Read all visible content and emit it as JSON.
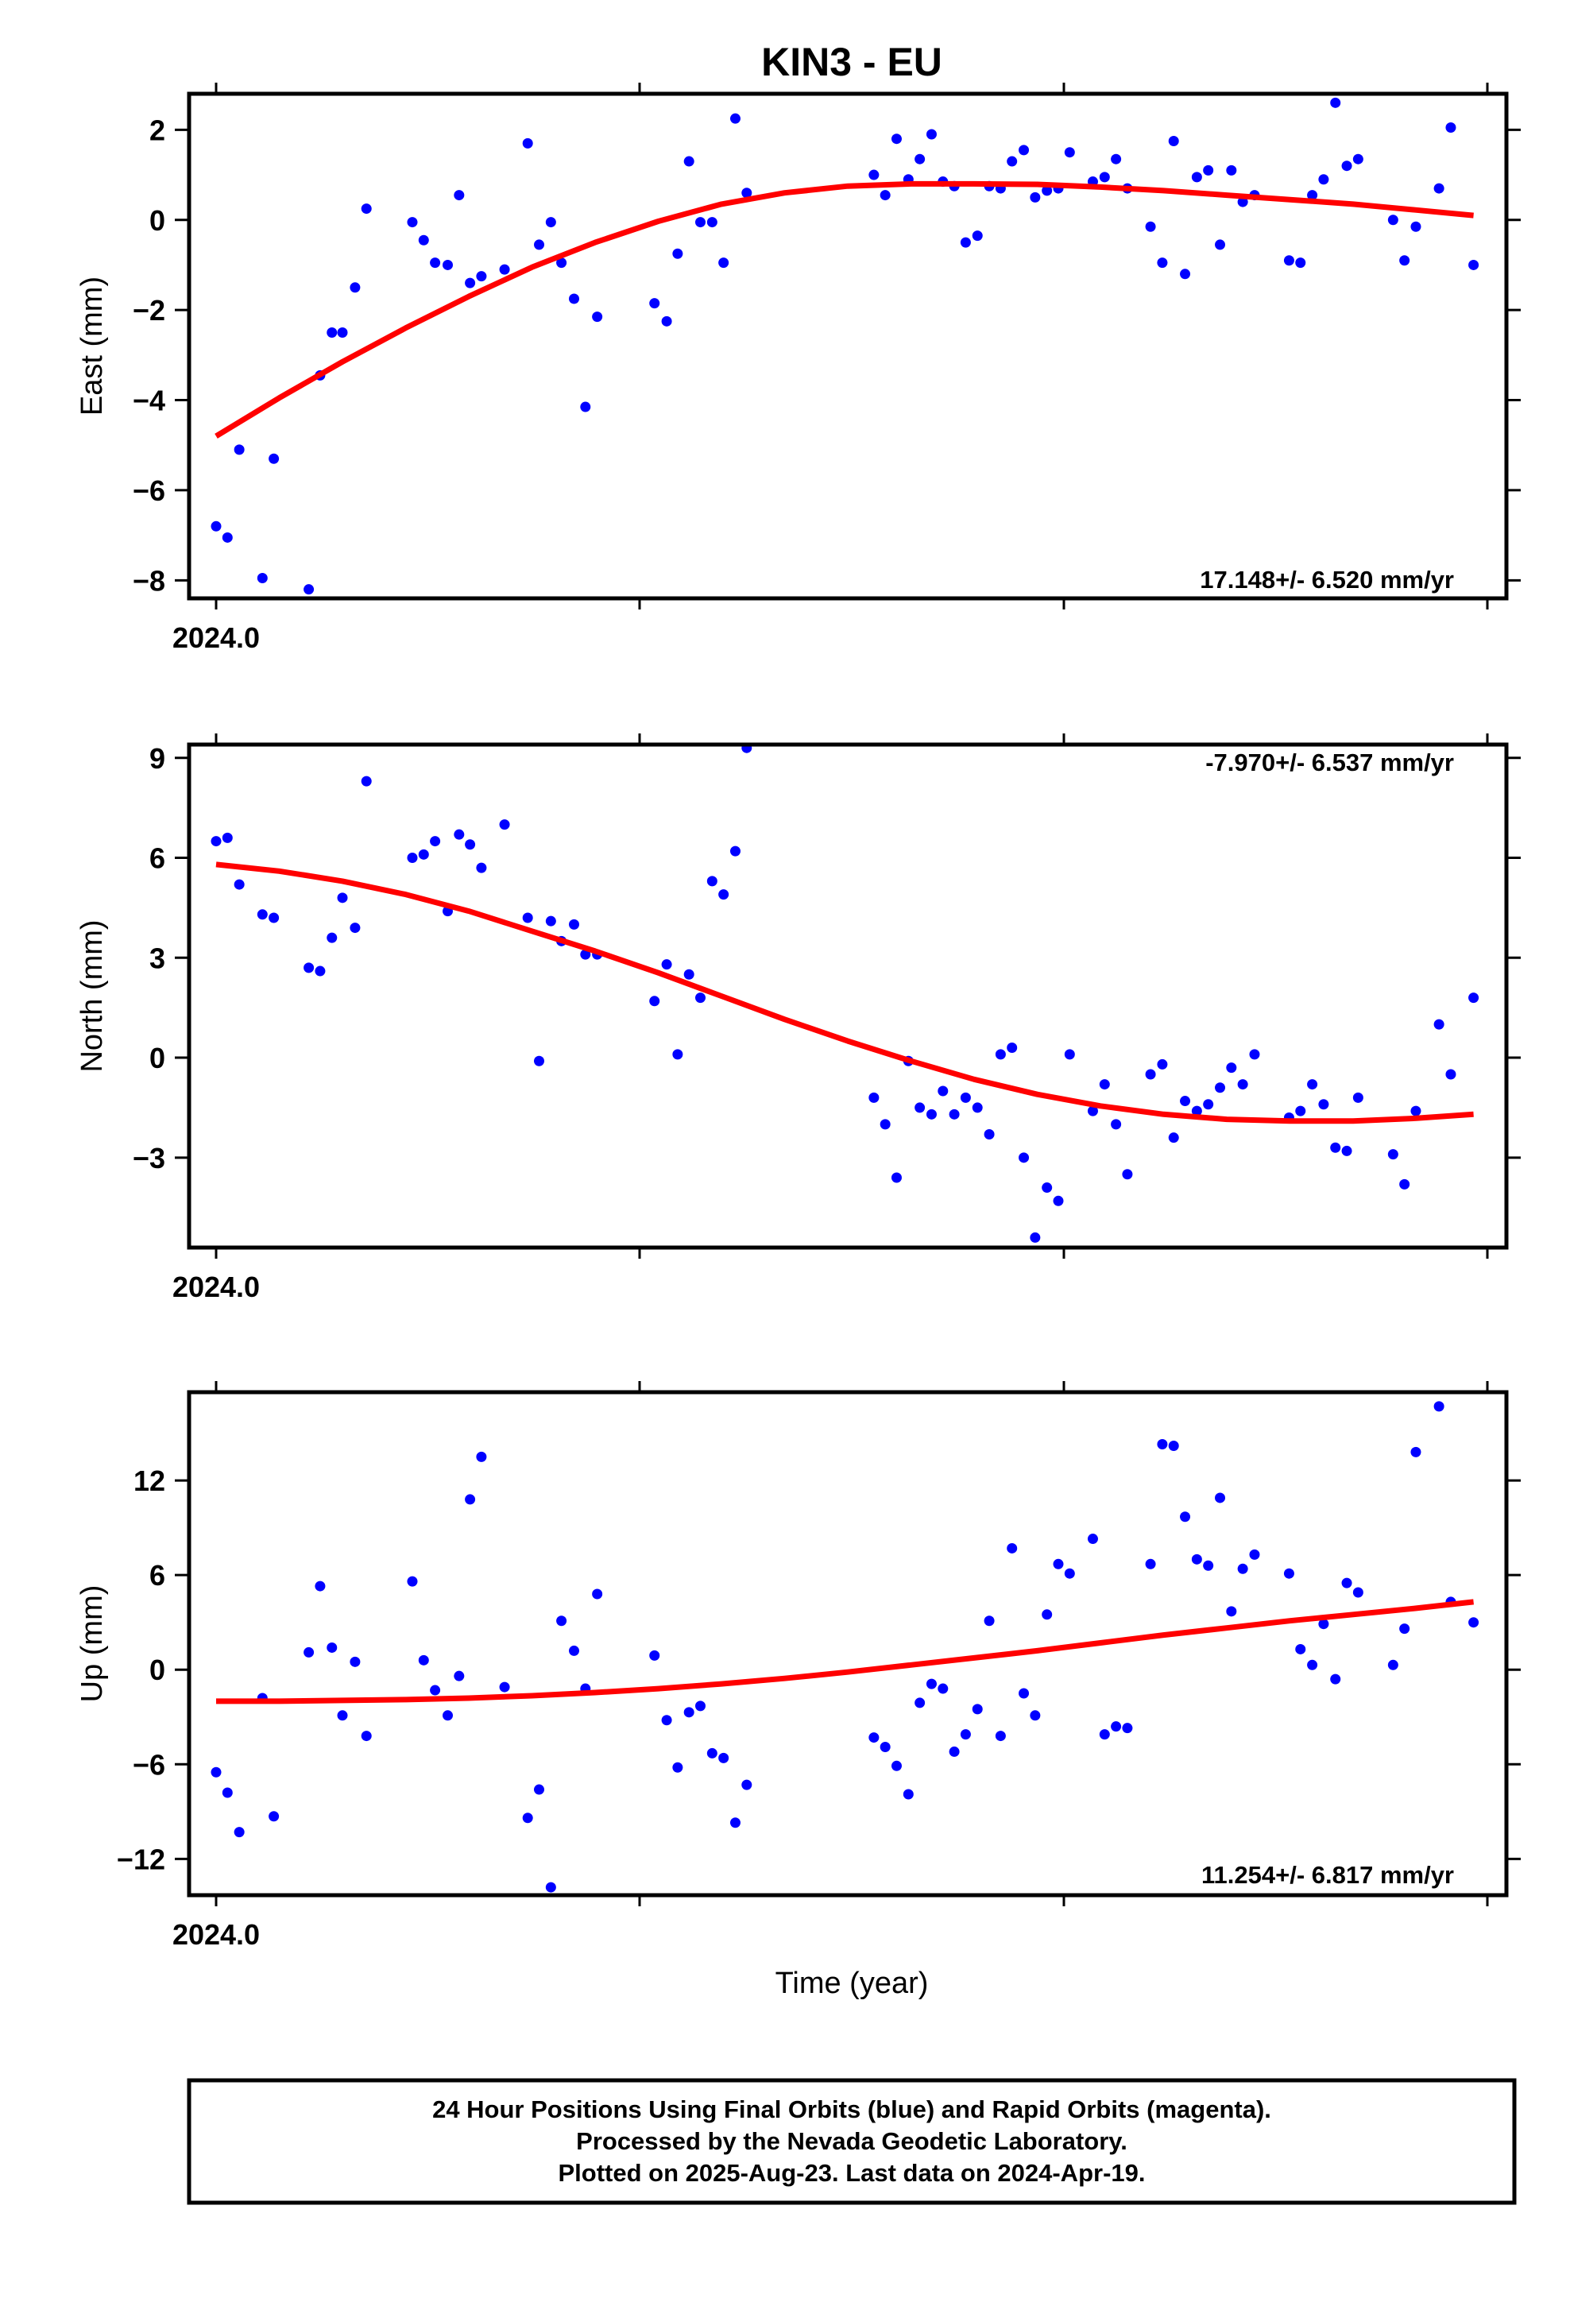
{
  "title": "KIN3 - EU",
  "xlabel": "Time (year)",
  "x_start_label": "2024.0",
  "footer": {
    "line1": "24 Hour Positions Using Final Orbits (blue) and Rapid Orbits (magenta).",
    "line2": "Processed by the Nevada Geodetic Laboratory.",
    "line3": "Plotted on 2025-Aug-23. Last data on 2024-Apr-19."
  },
  "colors": {
    "points": "#0000ff",
    "fit": "#ff0000",
    "frame": "#000000"
  },
  "chart_data": [
    {
      "type": "scatter",
      "ylabel": "East (mm)",
      "rate": "17.148+/- 6.520 mm/yr",
      "x_range": [
        2024.0,
        2024.3
      ],
      "ylim": [
        -8.4,
        2.8
      ],
      "yticks": [
        2,
        0,
        -2,
        -4,
        -6,
        -8
      ],
      "ytick_labels": [
        "2",
        "0",
        "−2",
        "−4",
        "−6",
        "−8"
      ],
      "points": [
        [
          2024.0,
          -6.8
        ],
        [
          2024.0027,
          -7.05
        ],
        [
          2024.0055,
          -5.1
        ],
        [
          2024.011,
          -7.95
        ],
        [
          2024.0137,
          -5.3
        ],
        [
          2024.022,
          -8.2
        ],
        [
          2024.0247,
          -3.45
        ],
        [
          2024.0275,
          -2.5
        ],
        [
          2024.03,
          -2.5
        ],
        [
          2024.033,
          -1.5
        ],
        [
          2024.0357,
          0.25
        ],
        [
          2024.0466,
          -0.05
        ],
        [
          2024.0493,
          -0.45
        ],
        [
          2024.052,
          -0.95
        ],
        [
          2024.055,
          -1.0
        ],
        [
          2024.0577,
          0.55
        ],
        [
          2024.0603,
          -1.4
        ],
        [
          2024.063,
          -1.25
        ],
        [
          2024.0685,
          -1.1
        ],
        [
          2024.074,
          1.7
        ],
        [
          2024.0767,
          -0.55
        ],
        [
          2024.0795,
          -0.05
        ],
        [
          2024.082,
          -0.95
        ],
        [
          2024.085,
          -1.75
        ],
        [
          2024.0877,
          -4.15
        ],
        [
          2024.0905,
          -2.15
        ],
        [
          2024.1041,
          -1.85
        ],
        [
          2024.107,
          -2.25
        ],
        [
          2024.1096,
          -0.75
        ],
        [
          2024.1123,
          1.3
        ],
        [
          2024.115,
          -0.05
        ],
        [
          2024.1178,
          -0.05
        ],
        [
          2024.1205,
          -0.95
        ],
        [
          2024.1233,
          2.25
        ],
        [
          2024.126,
          0.6
        ],
        [
          2024.1562,
          1.0
        ],
        [
          2024.1589,
          0.55
        ],
        [
          2024.1616,
          1.8
        ],
        [
          2024.1644,
          0.9
        ],
        [
          2024.1671,
          1.35
        ],
        [
          2024.1699,
          1.9
        ],
        [
          2024.1726,
          0.85
        ],
        [
          2024.1753,
          0.75
        ],
        [
          2024.178,
          -0.5
        ],
        [
          2024.1808,
          -0.35
        ],
        [
          2024.1836,
          0.75
        ],
        [
          2024.1863,
          0.7
        ],
        [
          2024.189,
          1.3
        ],
        [
          2024.1918,
          1.55
        ],
        [
          2024.1945,
          0.5
        ],
        [
          2024.1973,
          0.65
        ],
        [
          2024.2,
          0.7
        ],
        [
          2024.2027,
          1.5
        ],
        [
          2024.2082,
          0.85
        ],
        [
          2024.211,
          0.95
        ],
        [
          2024.2137,
          1.35
        ],
        [
          2024.2164,
          0.7
        ],
        [
          2024.2219,
          -0.15
        ],
        [
          2024.2247,
          -0.95
        ],
        [
          2024.2274,
          1.75
        ],
        [
          2024.2301,
          -1.2
        ],
        [
          2024.2329,
          0.95
        ],
        [
          2024.2356,
          1.1
        ],
        [
          2024.2384,
          -0.55
        ],
        [
          2024.2411,
          1.1
        ],
        [
          2024.2438,
          0.4
        ],
        [
          2024.2466,
          0.55
        ],
        [
          2024.2548,
          -0.9
        ],
        [
          2024.2575,
          -0.95
        ],
        [
          2024.2603,
          0.55
        ],
        [
          2024.263,
          0.9
        ],
        [
          2024.2658,
          2.6
        ],
        [
          2024.2685,
          1.2
        ],
        [
          2024.2712,
          1.35
        ],
        [
          2024.2795,
          0.0
        ],
        [
          2024.2822,
          -0.9
        ],
        [
          2024.2849,
          -0.15
        ],
        [
          2024.2904,
          0.7
        ],
        [
          2024.2932,
          2.05
        ],
        [
          2024.2986,
          -1.0
        ]
      ],
      "fit": [
        [
          2024.0,
          -4.8
        ],
        [
          2024.015,
          -3.95
        ],
        [
          2024.03,
          -3.15
        ],
        [
          2024.045,
          -2.4
        ],
        [
          2024.06,
          -1.7
        ],
        [
          2024.075,
          -1.05
        ],
        [
          2024.09,
          -0.5
        ],
        [
          2024.105,
          -0.03
        ],
        [
          2024.12,
          0.35
        ],
        [
          2024.135,
          0.6
        ],
        [
          2024.15,
          0.75
        ],
        [
          2024.165,
          0.8
        ],
        [
          2024.18,
          0.8
        ],
        [
          2024.195,
          0.79
        ],
        [
          2024.21,
          0.73
        ],
        [
          2024.225,
          0.65
        ],
        [
          2024.24,
          0.55
        ],
        [
          2024.255,
          0.45
        ],
        [
          2024.27,
          0.35
        ],
        [
          2024.285,
          0.22
        ],
        [
          2024.2986,
          0.1
        ]
      ]
    },
    {
      "type": "scatter",
      "ylabel": "North (mm)",
      "rate": "-7.970+/- 6.537 mm/yr",
      "x_range": [
        2024.0,
        2024.3
      ],
      "ylim": [
        -5.7,
        9.4
      ],
      "yticks": [
        9,
        6,
        3,
        0,
        -3
      ],
      "ytick_labels": [
        "9",
        "6",
        "3",
        "0",
        "−3"
      ],
      "points": [
        [
          2024.0,
          6.5
        ],
        [
          2024.0027,
          6.6
        ],
        [
          2024.0055,
          5.2
        ],
        [
          2024.011,
          4.3
        ],
        [
          2024.0137,
          4.2
        ],
        [
          2024.022,
          2.7
        ],
        [
          2024.0247,
          2.6
        ],
        [
          2024.0275,
          3.6
        ],
        [
          2024.03,
          4.8
        ],
        [
          2024.033,
          3.9
        ],
        [
          2024.0357,
          8.3
        ],
        [
          2024.0466,
          6.0
        ],
        [
          2024.0493,
          6.1
        ],
        [
          2024.052,
          6.5
        ],
        [
          2024.055,
          4.4
        ],
        [
          2024.0577,
          6.7
        ],
        [
          2024.0603,
          6.4
        ],
        [
          2024.063,
          5.7
        ],
        [
          2024.0685,
          7.0
        ],
        [
          2024.074,
          4.2
        ],
        [
          2024.0767,
          -0.1
        ],
        [
          2024.0795,
          4.1
        ],
        [
          2024.082,
          3.5
        ],
        [
          2024.085,
          4.0
        ],
        [
          2024.0877,
          3.1
        ],
        [
          2024.0905,
          3.1
        ],
        [
          2024.1041,
          1.7
        ],
        [
          2024.107,
          2.8
        ],
        [
          2024.1096,
          0.1
        ],
        [
          2024.1123,
          2.5
        ],
        [
          2024.115,
          1.8
        ],
        [
          2024.1178,
          5.3
        ],
        [
          2024.1205,
          4.9
        ],
        [
          2024.1233,
          6.2
        ],
        [
          2024.126,
          9.3
        ],
        [
          2024.1562,
          -1.2
        ],
        [
          2024.1589,
          -2.0
        ],
        [
          2024.1616,
          -3.6
        ],
        [
          2024.1644,
          -0.1
        ],
        [
          2024.1671,
          -1.5
        ],
        [
          2024.1699,
          -1.7
        ],
        [
          2024.1726,
          -1.0
        ],
        [
          2024.1753,
          -1.7
        ],
        [
          2024.178,
          -1.2
        ],
        [
          2024.1808,
          -1.5
        ],
        [
          2024.1836,
          -2.3
        ],
        [
          2024.1863,
          0.1
        ],
        [
          2024.189,
          0.3
        ],
        [
          2024.1918,
          -3.0
        ],
        [
          2024.1945,
          -5.4
        ],
        [
          2024.1973,
          -3.9
        ],
        [
          2024.2,
          -4.3
        ],
        [
          2024.2027,
          0.1
        ],
        [
          2024.2082,
          -1.6
        ],
        [
          2024.211,
          -0.8
        ],
        [
          2024.2137,
          -2.0
        ],
        [
          2024.2164,
          -3.5
        ],
        [
          2024.2219,
          -0.5
        ],
        [
          2024.2247,
          -0.2
        ],
        [
          2024.2274,
          -2.4
        ],
        [
          2024.2301,
          -1.3
        ],
        [
          2024.2329,
          -1.6
        ],
        [
          2024.2356,
          -1.4
        ],
        [
          2024.2384,
          -0.9
        ],
        [
          2024.2411,
          -0.3
        ],
        [
          2024.2438,
          -0.8
        ],
        [
          2024.2466,
          0.1
        ],
        [
          2024.2548,
          -1.8
        ],
        [
          2024.2575,
          -1.6
        ],
        [
          2024.2603,
          -0.8
        ],
        [
          2024.263,
          -1.4
        ],
        [
          2024.2658,
          -2.7
        ],
        [
          2024.2685,
          -2.8
        ],
        [
          2024.2712,
          -1.2
        ],
        [
          2024.2795,
          -2.9
        ],
        [
          2024.2822,
          -3.8
        ],
        [
          2024.2849,
          -1.6
        ],
        [
          2024.2904,
          1.0
        ],
        [
          2024.2932,
          -0.5
        ],
        [
          2024.2986,
          1.8
        ]
      ],
      "fit": [
        [
          2024.0,
          5.8
        ],
        [
          2024.015,
          5.6
        ],
        [
          2024.03,
          5.3
        ],
        [
          2024.045,
          4.9
        ],
        [
          2024.06,
          4.4
        ],
        [
          2024.075,
          3.8
        ],
        [
          2024.09,
          3.2
        ],
        [
          2024.105,
          2.55
        ],
        [
          2024.12,
          1.85
        ],
        [
          2024.135,
          1.15
        ],
        [
          2024.15,
          0.5
        ],
        [
          2024.165,
          -0.1
        ],
        [
          2024.18,
          -0.65
        ],
        [
          2024.195,
          -1.1
        ],
        [
          2024.21,
          -1.45
        ],
        [
          2024.225,
          -1.7
        ],
        [
          2024.24,
          -1.85
        ],
        [
          2024.255,
          -1.9
        ],
        [
          2024.27,
          -1.9
        ],
        [
          2024.285,
          -1.82
        ],
        [
          2024.2986,
          -1.7
        ]
      ]
    },
    {
      "type": "scatter",
      "ylabel": "Up (mm)",
      "rate": "11.254+/- 6.817 mm/yr",
      "x_range": [
        2024.0,
        2024.3
      ],
      "ylim": [
        -14.3,
        17.6
      ],
      "yticks": [
        12,
        6,
        0,
        -6,
        -12
      ],
      "ytick_labels": [
        "12",
        "6",
        "0",
        "−6",
        "−12"
      ],
      "points": [
        [
          2024.0,
          -6.5
        ],
        [
          2024.0027,
          -7.8
        ],
        [
          2024.0055,
          -10.3
        ],
        [
          2024.011,
          -1.8
        ],
        [
          2024.0137,
          -9.3
        ],
        [
          2024.022,
          1.1
        ],
        [
          2024.0247,
          5.3
        ],
        [
          2024.0275,
          1.4
        ],
        [
          2024.03,
          -2.9
        ],
        [
          2024.033,
          0.5
        ],
        [
          2024.0357,
          -4.2
        ],
        [
          2024.0466,
          5.6
        ],
        [
          2024.0493,
          0.6
        ],
        [
          2024.052,
          -1.3
        ],
        [
          2024.055,
          -2.9
        ],
        [
          2024.0577,
          -0.4
        ],
        [
          2024.0603,
          10.8
        ],
        [
          2024.063,
          13.5
        ],
        [
          2024.0685,
          -1.1
        ],
        [
          2024.074,
          -9.4
        ],
        [
          2024.0767,
          -7.6
        ],
        [
          2024.0795,
          -13.8
        ],
        [
          2024.082,
          3.1
        ],
        [
          2024.085,
          1.2
        ],
        [
          2024.0877,
          -1.2
        ],
        [
          2024.0905,
          4.8
        ],
        [
          2024.1041,
          0.9
        ],
        [
          2024.107,
          -3.2
        ],
        [
          2024.1096,
          -6.2
        ],
        [
          2024.1123,
          -2.7
        ],
        [
          2024.115,
          -2.3
        ],
        [
          2024.1178,
          -5.3
        ],
        [
          2024.1205,
          -5.6
        ],
        [
          2024.1233,
          -9.7
        ],
        [
          2024.126,
          -7.3
        ],
        [
          2024.1562,
          -4.3
        ],
        [
          2024.1589,
          -4.9
        ],
        [
          2024.1616,
          -6.1
        ],
        [
          2024.1644,
          -7.9
        ],
        [
          2024.1671,
          -2.1
        ],
        [
          2024.1699,
          -0.9
        ],
        [
          2024.1726,
          -1.2
        ],
        [
          2024.1753,
          -5.2
        ],
        [
          2024.178,
          -4.1
        ],
        [
          2024.1808,
          -2.5
        ],
        [
          2024.1836,
          3.1
        ],
        [
          2024.1863,
          -4.2
        ],
        [
          2024.189,
          7.7
        ],
        [
          2024.1918,
          -1.5
        ],
        [
          2024.1945,
          -2.9
        ],
        [
          2024.1973,
          3.5
        ],
        [
          2024.2,
          6.7
        ],
        [
          2024.2027,
          6.1
        ],
        [
          2024.2082,
          8.3
        ],
        [
          2024.211,
          -4.1
        ],
        [
          2024.2137,
          -3.6
        ],
        [
          2024.2164,
          -3.7
        ],
        [
          2024.2219,
          6.7
        ],
        [
          2024.2247,
          14.3
        ],
        [
          2024.2274,
          14.2
        ],
        [
          2024.2301,
          9.7
        ],
        [
          2024.2329,
          7.0
        ],
        [
          2024.2356,
          6.6
        ],
        [
          2024.2384,
          10.9
        ],
        [
          2024.2411,
          3.7
        ],
        [
          2024.2438,
          6.4
        ],
        [
          2024.2466,
          7.3
        ],
        [
          2024.2548,
          6.1
        ],
        [
          2024.2575,
          1.3
        ],
        [
          2024.2603,
          0.3
        ],
        [
          2024.263,
          2.9
        ],
        [
          2024.2658,
          -0.6
        ],
        [
          2024.2685,
          5.5
        ],
        [
          2024.2712,
          4.9
        ],
        [
          2024.2795,
          0.3
        ],
        [
          2024.2822,
          2.6
        ],
        [
          2024.2849,
          13.8
        ],
        [
          2024.2904,
          16.7
        ],
        [
          2024.2932,
          4.3
        ],
        [
          2024.2986,
          3.0
        ]
      ],
      "fit": [
        [
          2024.0,
          -2.0
        ],
        [
          2024.015,
          -2.0
        ],
        [
          2024.03,
          -1.95
        ],
        [
          2024.045,
          -1.9
        ],
        [
          2024.06,
          -1.8
        ],
        [
          2024.075,
          -1.65
        ],
        [
          2024.09,
          -1.45
        ],
        [
          2024.105,
          -1.2
        ],
        [
          2024.12,
          -0.9
        ],
        [
          2024.135,
          -0.55
        ],
        [
          2024.15,
          -0.15
        ],
        [
          2024.165,
          0.3
        ],
        [
          2024.18,
          0.75
        ],
        [
          2024.195,
          1.2
        ],
        [
          2024.21,
          1.7
        ],
        [
          2024.225,
          2.2
        ],
        [
          2024.24,
          2.65
        ],
        [
          2024.255,
          3.1
        ],
        [
          2024.27,
          3.5
        ],
        [
          2024.285,
          3.9
        ],
        [
          2024.2986,
          4.3
        ]
      ]
    }
  ]
}
